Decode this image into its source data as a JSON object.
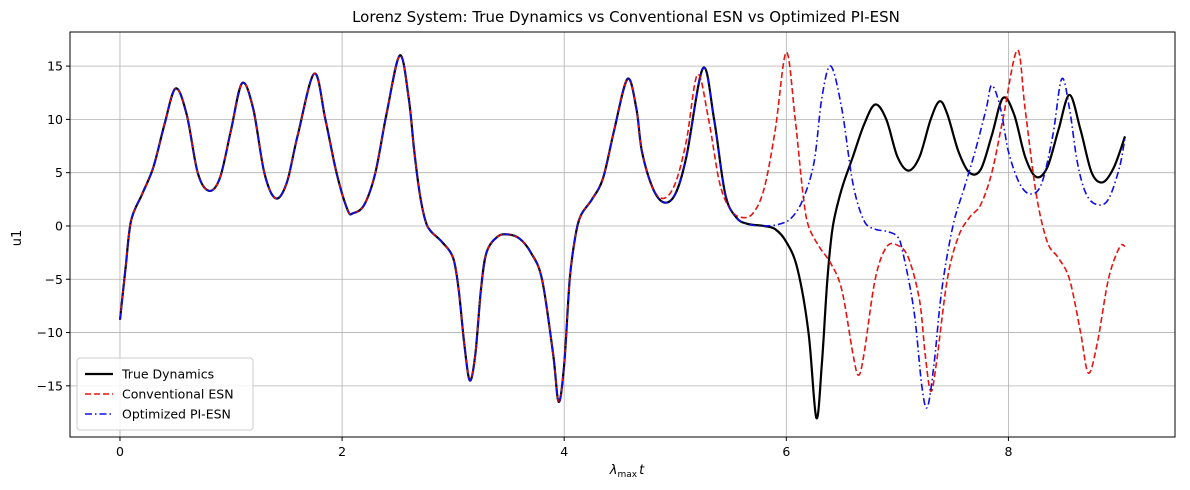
{
  "chart_data": {
    "type": "line",
    "title": "Lorenz System: True Dynamics vs Conventional ESN vs Optimized PI-ESN",
    "xlabel_main": "λ",
    "xlabel_sub": "max",
    "xlabel_tail": "t",
    "ylabel": "u1",
    "xlim": [
      -0.45,
      9.5
    ],
    "ylim": [
      -19.8,
      18.2
    ],
    "xticks": [
      0,
      2,
      4,
      6,
      8
    ],
    "yticks": [
      -15,
      -10,
      -5,
      0,
      5,
      10,
      15
    ],
    "grid": true,
    "legend_position": "lower-left",
    "series": [
      {
        "name": "True Dynamics",
        "color": "#000000",
        "style": "solid",
        "points": [
          [
            0,
            -8.8
          ],
          [
            0.05,
            -4
          ],
          [
            0.1,
            0.5
          ],
          [
            0.2,
            3
          ],
          [
            0.3,
            5.5
          ],
          [
            0.4,
            9.5
          ],
          [
            0.5,
            12.9
          ],
          [
            0.6,
            10.5
          ],
          [
            0.7,
            5
          ],
          [
            0.8,
            3.3
          ],
          [
            0.9,
            4.5
          ],
          [
            1.0,
            9
          ],
          [
            1.1,
            13.4
          ],
          [
            1.2,
            11
          ],
          [
            1.3,
            5
          ],
          [
            1.4,
            2.6
          ],
          [
            1.5,
            4
          ],
          [
            1.6,
            8.5
          ],
          [
            1.75,
            14.3
          ],
          [
            1.85,
            10
          ],
          [
            1.95,
            5
          ],
          [
            2.05,
            1.5
          ],
          [
            2.1,
            1.2
          ],
          [
            2.2,
            2
          ],
          [
            2.3,
            5
          ],
          [
            2.4,
            10.5
          ],
          [
            2.52,
            16
          ],
          [
            2.6,
            12
          ],
          [
            2.65,
            7
          ],
          [
            2.7,
            3
          ],
          [
            2.75,
            0.5
          ],
          [
            2.8,
            -0.5
          ],
          [
            2.9,
            -1.5
          ],
          [
            3.0,
            -3
          ],
          [
            3.05,
            -6
          ],
          [
            3.1,
            -11
          ],
          [
            3.15,
            -14.5
          ],
          [
            3.2,
            -12
          ],
          [
            3.25,
            -6
          ],
          [
            3.3,
            -2.5
          ],
          [
            3.4,
            -1
          ],
          [
            3.5,
            -0.8
          ],
          [
            3.6,
            -1.2
          ],
          [
            3.7,
            -2.5
          ],
          [
            3.8,
            -5
          ],
          [
            3.9,
            -12
          ],
          [
            3.95,
            -16.5
          ],
          [
            4.0,
            -13
          ],
          [
            4.05,
            -5
          ],
          [
            4.1,
            -1
          ],
          [
            4.15,
            1
          ],
          [
            4.25,
            2.5
          ],
          [
            4.35,
            4.5
          ],
          [
            4.45,
            9
          ],
          [
            4.57,
            13.8
          ],
          [
            4.65,
            11
          ],
          [
            4.7,
            7
          ],
          [
            4.8,
            3.5
          ],
          [
            4.9,
            2.2
          ],
          [
            5.0,
            3
          ],
          [
            5.1,
            6.5
          ],
          [
            5.25,
            14.8
          ],
          [
            5.35,
            10
          ],
          [
            5.45,
            3
          ],
          [
            5.55,
            0.8
          ],
          [
            5.65,
            0.2
          ],
          [
            5.8,
            0
          ],
          [
            5.9,
            -0.3
          ],
          [
            6.0,
            -1.5
          ],
          [
            6.1,
            -4
          ],
          [
            6.2,
            -10
          ],
          [
            6.27,
            -18
          ],
          [
            6.32,
            -13
          ],
          [
            6.37,
            -5
          ],
          [
            6.42,
            0
          ],
          [
            6.5,
            3.5
          ],
          [
            6.6,
            6.5
          ],
          [
            6.7,
            9.5
          ],
          [
            6.8,
            11.4
          ],
          [
            6.9,
            10
          ],
          [
            7.0,
            6.5
          ],
          [
            7.1,
            5.2
          ],
          [
            7.2,
            6.5
          ],
          [
            7.3,
            10
          ],
          [
            7.38,
            11.7
          ],
          [
            7.45,
            10.5
          ],
          [
            7.55,
            7
          ],
          [
            7.65,
            5
          ],
          [
            7.75,
            5.3
          ],
          [
            7.85,
            8.5
          ],
          [
            7.95,
            12
          ],
          [
            8.05,
            10.5
          ],
          [
            8.15,
            6.5
          ],
          [
            8.25,
            4.6
          ],
          [
            8.35,
            5.5
          ],
          [
            8.45,
            9
          ],
          [
            8.55,
            12.3
          ],
          [
            8.65,
            9
          ],
          [
            8.75,
            5
          ],
          [
            8.85,
            4.1
          ],
          [
            8.95,
            5.5
          ],
          [
            9.05,
            8.4
          ]
        ]
      },
      {
        "name": "Conventional ESN",
        "color": "#e8130f",
        "style": "dashed",
        "points": [
          [
            0,
            -8.8
          ],
          [
            0.05,
            -4
          ],
          [
            0.1,
            0.5
          ],
          [
            0.2,
            3
          ],
          [
            0.3,
            5.5
          ],
          [
            0.4,
            9.5
          ],
          [
            0.5,
            12.9
          ],
          [
            0.6,
            10.5
          ],
          [
            0.7,
            5
          ],
          [
            0.8,
            3.3
          ],
          [
            0.9,
            4.5
          ],
          [
            1.0,
            9
          ],
          [
            1.1,
            13.4
          ],
          [
            1.2,
            11
          ],
          [
            1.3,
            5
          ],
          [
            1.4,
            2.6
          ],
          [
            1.5,
            4
          ],
          [
            1.6,
            8.5
          ],
          [
            1.75,
            14.3
          ],
          [
            1.85,
            10
          ],
          [
            1.95,
            5
          ],
          [
            2.05,
            1.5
          ],
          [
            2.1,
            1.2
          ],
          [
            2.2,
            2
          ],
          [
            2.3,
            5
          ],
          [
            2.4,
            10.5
          ],
          [
            2.52,
            16
          ],
          [
            2.6,
            12
          ],
          [
            2.65,
            7
          ],
          [
            2.7,
            3
          ],
          [
            2.75,
            0.5
          ],
          [
            2.8,
            -0.5
          ],
          [
            2.9,
            -1.5
          ],
          [
            3.0,
            -3
          ],
          [
            3.05,
            -6
          ],
          [
            3.1,
            -11
          ],
          [
            3.15,
            -14.5
          ],
          [
            3.2,
            -12
          ],
          [
            3.25,
            -6
          ],
          [
            3.3,
            -2.5
          ],
          [
            3.4,
            -1
          ],
          [
            3.5,
            -0.8
          ],
          [
            3.6,
            -1.2
          ],
          [
            3.7,
            -2.5
          ],
          [
            3.8,
            -5
          ],
          [
            3.9,
            -12
          ],
          [
            3.95,
            -16.5
          ],
          [
            4.0,
            -13
          ],
          [
            4.05,
            -5
          ],
          [
            4.1,
            -1
          ],
          [
            4.15,
            1
          ],
          [
            4.25,
            2.5
          ],
          [
            4.35,
            4.5
          ],
          [
            4.45,
            9
          ],
          [
            4.57,
            13.8
          ],
          [
            4.65,
            11
          ],
          [
            4.7,
            7
          ],
          [
            4.8,
            3.5
          ],
          [
            4.9,
            2.6
          ],
          [
            5.0,
            4
          ],
          [
            5.1,
            8
          ],
          [
            5.2,
            14.2
          ],
          [
            5.3,
            10
          ],
          [
            5.4,
            4
          ],
          [
            5.5,
            1.5
          ],
          [
            5.6,
            0.8
          ],
          [
            5.7,
            1.2
          ],
          [
            5.8,
            3.5
          ],
          [
            5.9,
            9
          ],
          [
            6.0,
            16.3
          ],
          [
            6.08,
            10
          ],
          [
            6.15,
            3
          ],
          [
            6.2,
            0
          ],
          [
            6.3,
            -2
          ],
          [
            6.4,
            -3.5
          ],
          [
            6.5,
            -6
          ],
          [
            6.6,
            -12
          ],
          [
            6.65,
            -14
          ],
          [
            6.7,
            -12
          ],
          [
            6.8,
            -5
          ],
          [
            6.9,
            -2
          ],
          [
            7.0,
            -1.8
          ],
          [
            7.1,
            -3
          ],
          [
            7.2,
            -7
          ],
          [
            7.25,
            -12
          ],
          [
            7.3,
            -15.5
          ],
          [
            7.35,
            -13
          ],
          [
            7.45,
            -5
          ],
          [
            7.55,
            -1
          ],
          [
            7.65,
            0.8
          ],
          [
            7.75,
            2
          ],
          [
            7.85,
            5
          ],
          [
            7.95,
            10
          ],
          [
            8.08,
            16.5
          ],
          [
            8.15,
            11
          ],
          [
            8.25,
            3
          ],
          [
            8.35,
            -1.5
          ],
          [
            8.45,
            -3
          ],
          [
            8.55,
            -5
          ],
          [
            8.65,
            -10
          ],
          [
            8.72,
            -13.8
          ],
          [
            8.8,
            -11
          ],
          [
            8.9,
            -5
          ],
          [
            9.0,
            -2
          ],
          [
            9.05,
            -1.9
          ]
        ]
      },
      {
        "name": "Optimized PI-ESN",
        "color": "#0d0de8",
        "style": "dashdot",
        "points": [
          [
            0,
            -8.8
          ],
          [
            0.05,
            -4
          ],
          [
            0.1,
            0.5
          ],
          [
            0.2,
            3
          ],
          [
            0.3,
            5.5
          ],
          [
            0.4,
            9.5
          ],
          [
            0.5,
            12.9
          ],
          [
            0.6,
            10.5
          ],
          [
            0.7,
            5
          ],
          [
            0.8,
            3.3
          ],
          [
            0.9,
            4.5
          ],
          [
            1.0,
            9
          ],
          [
            1.1,
            13.4
          ],
          [
            1.2,
            11
          ],
          [
            1.3,
            5
          ],
          [
            1.4,
            2.6
          ],
          [
            1.5,
            4
          ],
          [
            1.6,
            8.5
          ],
          [
            1.75,
            14.3
          ],
          [
            1.85,
            10
          ],
          [
            1.95,
            5
          ],
          [
            2.05,
            1.5
          ],
          [
            2.1,
            1.2
          ],
          [
            2.2,
            2
          ],
          [
            2.3,
            5
          ],
          [
            2.4,
            10.5
          ],
          [
            2.52,
            16
          ],
          [
            2.6,
            12
          ],
          [
            2.65,
            7
          ],
          [
            2.7,
            3
          ],
          [
            2.75,
            0.5
          ],
          [
            2.8,
            -0.5
          ],
          [
            2.9,
            -1.5
          ],
          [
            3.0,
            -3
          ],
          [
            3.05,
            -6
          ],
          [
            3.1,
            -11
          ],
          [
            3.15,
            -14.5
          ],
          [
            3.2,
            -12
          ],
          [
            3.25,
            -6
          ],
          [
            3.3,
            -2.5
          ],
          [
            3.4,
            -1
          ],
          [
            3.5,
            -0.8
          ],
          [
            3.6,
            -1.2
          ],
          [
            3.7,
            -2.5
          ],
          [
            3.8,
            -5
          ],
          [
            3.9,
            -12
          ],
          [
            3.95,
            -16.5
          ],
          [
            4.0,
            -13
          ],
          [
            4.05,
            -5
          ],
          [
            4.1,
            -1
          ],
          [
            4.15,
            1
          ],
          [
            4.25,
            2.5
          ],
          [
            4.35,
            4.5
          ],
          [
            4.45,
            9
          ],
          [
            4.57,
            13.8
          ],
          [
            4.65,
            11
          ],
          [
            4.7,
            7
          ],
          [
            4.8,
            3.5
          ],
          [
            4.9,
            2.2
          ],
          [
            5.0,
            3
          ],
          [
            5.1,
            6.5
          ],
          [
            5.25,
            14.8
          ],
          [
            5.35,
            10
          ],
          [
            5.45,
            3
          ],
          [
            5.55,
            0.8
          ],
          [
            5.65,
            0.2
          ],
          [
            5.8,
            0
          ],
          [
            5.95,
            0.2
          ],
          [
            6.05,
            0.8
          ],
          [
            6.15,
            2.5
          ],
          [
            6.25,
            6
          ],
          [
            6.32,
            12
          ],
          [
            6.4,
            15
          ],
          [
            6.5,
            11
          ],
          [
            6.6,
            4
          ],
          [
            6.7,
            0.5
          ],
          [
            6.8,
            -0.3
          ],
          [
            6.9,
            -0.5
          ],
          [
            7.0,
            -1
          ],
          [
            7.05,
            -2.5
          ],
          [
            7.15,
            -8
          ],
          [
            7.22,
            -15
          ],
          [
            7.27,
            -17
          ],
          [
            7.33,
            -13
          ],
          [
            7.4,
            -6
          ],
          [
            7.5,
            0
          ],
          [
            7.6,
            3.5
          ],
          [
            7.7,
            7
          ],
          [
            7.8,
            11
          ],
          [
            7.85,
            13.2
          ],
          [
            7.93,
            11
          ],
          [
            8.0,
            7
          ],
          [
            8.1,
            4
          ],
          [
            8.2,
            3
          ],
          [
            8.3,
            4
          ],
          [
            8.4,
            8.5
          ],
          [
            8.48,
            13.8
          ],
          [
            8.55,
            11
          ],
          [
            8.62,
            6
          ],
          [
            8.7,
            3
          ],
          [
            8.8,
            2
          ],
          [
            8.9,
            2.5
          ],
          [
            9.0,
            5.5
          ],
          [
            9.05,
            8.3
          ]
        ]
      }
    ]
  }
}
